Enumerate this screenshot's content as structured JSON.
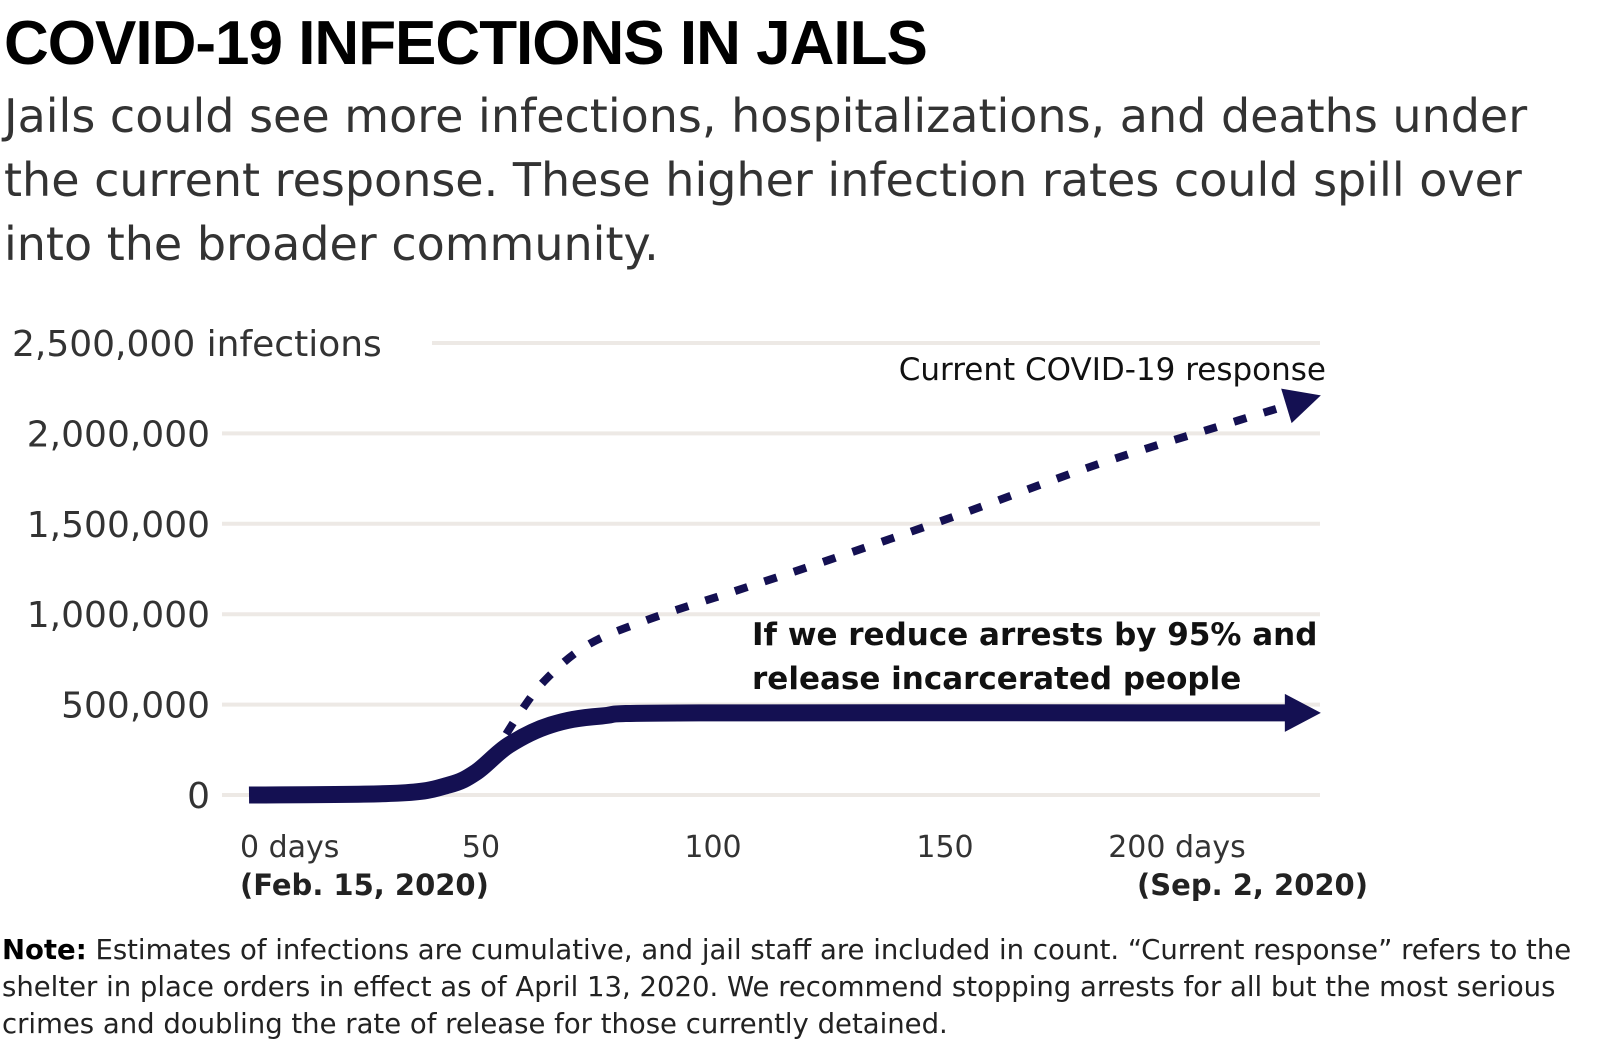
{
  "chart_data": {
    "type": "line",
    "title": "COVID-19 INFECTIONS IN JAILS",
    "subtitle": "Jails could see more infections, hospitalizations, and deaths under the current response. These higher infection rates could spill over into the broader community.",
    "xlabel": "",
    "ylabel": "",
    "xlim": [
      0,
      231
    ],
    "ylim": [
      0,
      2500000
    ],
    "grid": true,
    "y_ticks": [
      {
        "value": 0,
        "label": "0"
      },
      {
        "value": 500000,
        "label": "500,000"
      },
      {
        "value": 1000000,
        "label": "1,000,000"
      },
      {
        "value": 1500000,
        "label": "1,500,000"
      },
      {
        "value": 2000000,
        "label": "2,000,000"
      },
      {
        "value": 2500000,
        "label": "2,500,000 infections"
      }
    ],
    "x_ticks": [
      {
        "value": 0,
        "label": "0 days",
        "sub": "(Feb. 15, 2020)"
      },
      {
        "value": 50,
        "label": "50",
        "sub": ""
      },
      {
        "value": 100,
        "label": "100",
        "sub": ""
      },
      {
        "value": 150,
        "label": "150",
        "sub": ""
      },
      {
        "value": 200,
        "label": "200 days",
        "sub": "(Sep. 2, 2020)"
      }
    ],
    "series": [
      {
        "name": "Current COVID-19 response",
        "style": "dotted",
        "color": "#141052",
        "x": [
          52,
          58,
          64,
          73,
          86,
          105,
          125,
          153,
          183,
          213,
          231
        ],
        "y": [
          190000,
          440000,
          640000,
          830000,
          970000,
          1130000,
          1300000,
          1550000,
          1830000,
          2070000,
          2210000
        ]
      },
      {
        "name": "If we reduce arrests by 95% and release incarcerated people",
        "style": "solid",
        "color": "#141052",
        "x": [
          0,
          32,
          43,
          49,
          56,
          65,
          76,
          97,
          231
        ],
        "y": [
          0,
          10000,
          55000,
          127000,
          276000,
          387000,
          437000,
          454000,
          454000
        ]
      }
    ],
    "annotations": [
      "Current COVID-19 response",
      "If we reduce arrests by 95% and",
      "release incarcerated people"
    ]
  },
  "note": {
    "label": "Note:",
    "text": " Estimates of infections are cumulative, and jail staff are included in count. “Current response” refers to the shelter in place orders in effect as of April 13, 2020. We recommend stopping arrests for all but the most serious crimes and doubling the rate of release for those currently detained."
  },
  "colors": {
    "line": "#141052",
    "grid": "#ede9e5"
  }
}
